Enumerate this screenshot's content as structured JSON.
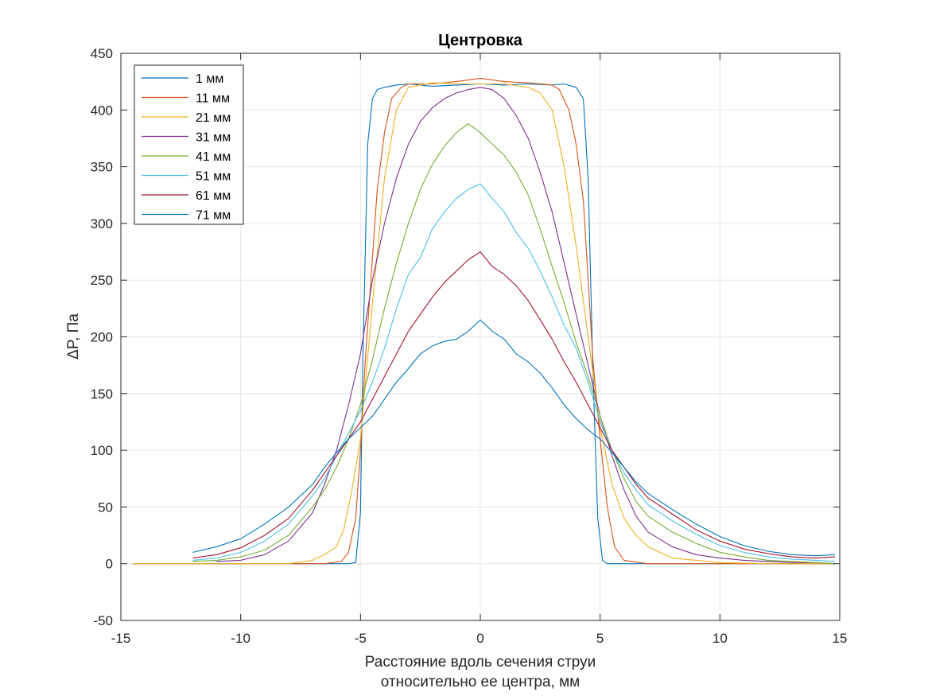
{
  "chart_data": {
    "type": "line",
    "title": "Центровка",
    "xlabel": [
      "Расстояние вдоль сечения струи",
      "относительно ее центра, мм"
    ],
    "ylabel": "ΔP, Па",
    "xlim": [
      -15,
      15
    ],
    "ylim": [
      -50,
      450
    ],
    "xticks": [
      -15,
      -10,
      -5,
      0,
      5,
      10,
      15
    ],
    "yticks": [
      -50,
      0,
      50,
      100,
      150,
      200,
      250,
      300,
      350,
      400,
      450
    ],
    "xtick_labels": [
      "-15",
      "-10",
      "-5",
      "0",
      "5",
      "10",
      "15"
    ],
    "ytick_labels": [
      "-50",
      "0",
      "50",
      "100",
      "150",
      "200",
      "250",
      "300",
      "350",
      "400",
      "450"
    ],
    "grid": true,
    "legend_position": "top-left",
    "series": [
      {
        "name": "1 мм",
        "color": "#0072BD",
        "x": [
          -14.5,
          -13,
          -12,
          -10,
          -8,
          -6,
          -5.5,
          -5.2,
          -5.0,
          -4.9,
          -4.7,
          -4.5,
          -4.3,
          -4.0,
          -3.5,
          -3,
          -2,
          -1,
          0,
          1,
          2,
          3,
          3.5,
          4.0,
          4.3,
          4.5,
          4.7,
          4.9,
          5.1,
          5.3,
          6,
          8,
          10,
          12,
          14,
          14.8
        ],
        "y": [
          0,
          0,
          0,
          0,
          0,
          0,
          0,
          1,
          45,
          180,
          370,
          410,
          418,
          420,
          422,
          423,
          421,
          422,
          423,
          422,
          423,
          422,
          423,
          420,
          410,
          340,
          170,
          40,
          3,
          0,
          0,
          0,
          0,
          0,
          0,
          0
        ]
      },
      {
        "name": "11 мм",
        "color": "#D95319",
        "x": [
          -14.5,
          -12,
          -10,
          -8,
          -6.5,
          -5.8,
          -5.5,
          -5.2,
          -5.0,
          -4.8,
          -4.5,
          -4.3,
          -4.0,
          -3.7,
          -3.3,
          -3,
          -2,
          -1,
          0,
          1,
          2,
          3,
          3.3,
          3.7,
          4.0,
          4.3,
          4.5,
          4.7,
          5.0,
          5.3,
          5.6,
          6,
          7,
          9,
          12,
          14.8
        ],
        "y": [
          0,
          0,
          0,
          0,
          0,
          2,
          10,
          40,
          100,
          180,
          270,
          330,
          380,
          410,
          420,
          423,
          423,
          425,
          428,
          425,
          424,
          422,
          418,
          400,
          370,
          320,
          250,
          180,
          110,
          50,
          15,
          3,
          0,
          0,
          0,
          0
        ]
      },
      {
        "name": "21 мм",
        "color": "#EDB120",
        "x": [
          -14.5,
          -12,
          -10,
          -8,
          -7,
          -6.5,
          -6,
          -5.7,
          -5.4,
          -5.0,
          -4.5,
          -4.0,
          -3.5,
          -3,
          -2,
          -1,
          0,
          1,
          2,
          2.5,
          3,
          3.5,
          4,
          4.5,
          5,
          5.5,
          6,
          6.5,
          7,
          8,
          10,
          12,
          14.8
        ],
        "y": [
          0,
          0,
          0,
          0,
          3,
          8,
          15,
          30,
          60,
          110,
          230,
          340,
          400,
          420,
          424,
          423,
          423,
          423,
          420,
          415,
          400,
          350,
          280,
          200,
          120,
          70,
          40,
          25,
          15,
          5,
          1,
          0,
          0
        ]
      },
      {
        "name": "31 мм",
        "color": "#7E2F8E",
        "x": [
          -11,
          -10,
          -9,
          -8,
          -7,
          -6.5,
          -6,
          -5.5,
          -5,
          -4.5,
          -4,
          -3.5,
          -3,
          -2.5,
          -2,
          -1.5,
          -1,
          -0.5,
          0,
          0.5,
          1,
          1.5,
          2,
          2.5,
          3,
          3.5,
          4,
          4.5,
          5,
          5.5,
          6,
          6.5,
          7,
          8,
          9,
          10,
          11,
          12,
          13,
          14,
          14.8
        ],
        "y": [
          2,
          3,
          8,
          20,
          45,
          70,
          100,
          140,
          185,
          250,
          300,
          340,
          370,
          390,
          402,
          410,
          415,
          418,
          420,
          418,
          410,
          395,
          375,
          345,
          310,
          265,
          220,
          175,
          130,
          95,
          65,
          42,
          28,
          15,
          8,
          5,
          3,
          2,
          1,
          1,
          0
        ]
      },
      {
        "name": "41 мм",
        "color": "#77AC30",
        "x": [
          -12,
          -11,
          -10,
          -9,
          -8,
          -7,
          -6.5,
          -6,
          -5.5,
          -5,
          -4.5,
          -4,
          -3.5,
          -3,
          -2.5,
          -2,
          -1.5,
          -1,
          -0.5,
          0,
          0.5,
          1,
          1.5,
          2,
          2.5,
          3,
          3.5,
          4,
          4.5,
          5,
          5.5,
          6,
          6.5,
          7,
          8,
          9,
          10,
          11,
          12,
          13,
          14,
          14.8
        ],
        "y": [
          2,
          3,
          6,
          12,
          25,
          50,
          65,
          85,
          110,
          140,
          180,
          225,
          265,
          300,
          330,
          352,
          368,
          380,
          388,
          380,
          370,
          360,
          345,
          325,
          295,
          262,
          230,
          195,
          165,
          130,
          100,
          75,
          55,
          42,
          28,
          18,
          10,
          6,
          3,
          2,
          1,
          0
        ]
      },
      {
        "name": "51 мм",
        "color": "#4DBEEE",
        "x": [
          -12,
          -11,
          -10,
          -9,
          -8,
          -7,
          -6.5,
          -6,
          -5.5,
          -5,
          -4.5,
          -4,
          -3.5,
          -3,
          -2.5,
          -2,
          -1.5,
          -1,
          -0.5,
          0,
          0.5,
          1,
          1.5,
          2,
          2.5,
          3,
          3.5,
          4,
          4.5,
          5,
          5.5,
          6,
          6.5,
          7,
          8,
          9,
          10,
          11,
          12,
          13,
          14,
          14.8
        ],
        "y": [
          3,
          5,
          10,
          20,
          35,
          60,
          75,
          95,
          115,
          135,
          160,
          190,
          225,
          255,
          270,
          295,
          310,
          322,
          330,
          335,
          322,
          310,
          292,
          278,
          258,
          235,
          210,
          190,
          160,
          125,
          100,
          80,
          65,
          52,
          38,
          26,
          16,
          10,
          6,
          4,
          3,
          2
        ]
      },
      {
        "name": "61 мм",
        "color": "#A2142F",
        "x": [
          -12,
          -11,
          -10,
          -9,
          -8,
          -7,
          -6.5,
          -6,
          -5.5,
          -5,
          -4.5,
          -4,
          -3.5,
          -3,
          -2.5,
          -2,
          -1.5,
          -1,
          -0.5,
          0,
          0.5,
          1,
          1.5,
          2,
          2.5,
          3,
          3.5,
          4,
          4.5,
          5,
          5.5,
          6,
          6.5,
          7,
          8,
          9,
          10,
          11,
          12,
          13,
          14,
          14.8
        ],
        "y": [
          5,
          8,
          14,
          25,
          40,
          65,
          80,
          95,
          110,
          125,
          145,
          165,
          185,
          205,
          220,
          235,
          248,
          258,
          268,
          275,
          262,
          255,
          245,
          232,
          215,
          198,
          178,
          160,
          140,
          120,
          100,
          85,
          70,
          58,
          44,
          30,
          20,
          13,
          9,
          6,
          5,
          6
        ]
      },
      {
        "name": "71 мм",
        "color": "#0072BD",
        "x": [
          -12,
          -11,
          -10,
          -9,
          -8,
          -7,
          -6.5,
          -6,
          -5.5,
          -5,
          -4.5,
          -4,
          -3.5,
          -3,
          -2.5,
          -2,
          -1.5,
          -1,
          -0.5,
          0,
          0.5,
          1,
          1.5,
          2,
          2.5,
          3,
          3.5,
          4,
          4.5,
          5,
          5.5,
          6,
          6.5,
          7,
          8,
          9,
          10,
          11,
          12,
          13,
          14,
          14.8
        ],
        "y": [
          10,
          15,
          22,
          35,
          50,
          70,
          85,
          98,
          110,
          120,
          130,
          145,
          160,
          172,
          185,
          192,
          196,
          198,
          205,
          215,
          205,
          198,
          185,
          178,
          168,
          155,
          140,
          128,
          118,
          110,
          98,
          85,
          72,
          62,
          48,
          35,
          24,
          16,
          11,
          8,
          7,
          8
        ]
      }
    ]
  }
}
